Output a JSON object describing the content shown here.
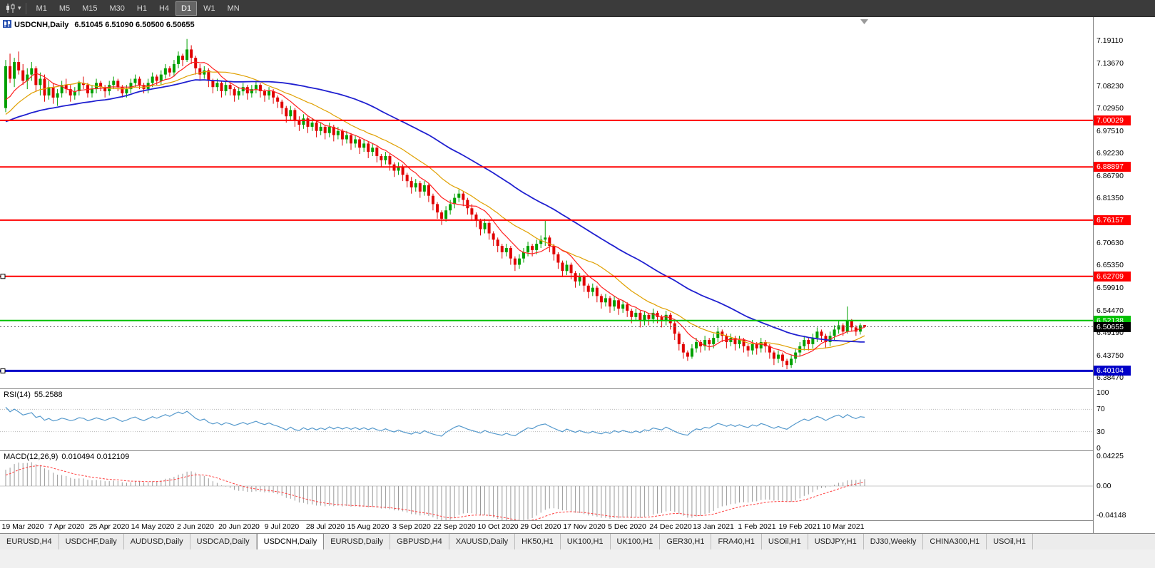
{
  "toolbar": {
    "timeframes": [
      "M1",
      "M5",
      "M15",
      "M30",
      "H1",
      "H4",
      "D1",
      "W1",
      "MN"
    ],
    "active_timeframe": "D1"
  },
  "chart": {
    "title": "USDCNH,Daily",
    "ohlc_text": "6.51045 6.51090 6.50500 6.50655"
  },
  "rsi": {
    "label": "RSI(14)",
    "value": "55.2588"
  },
  "macd": {
    "label": "MACD(12,26,9)",
    "values": "0.010494 0.012109"
  },
  "axis": {
    "price_labels": [
      "7.19110",
      "7.13670",
      "7.08230",
      "7.02950",
      "6.97510",
      "6.92230",
      "6.86790",
      "6.81350",
      "6.75910",
      "6.70630",
      "6.65350",
      "6.59910",
      "6.54470",
      "6.49190",
      "6.43750",
      "6.38470"
    ],
    "rsi_labels": [
      "100",
      "70",
      "30",
      "0"
    ],
    "macd_labels": [
      "0.04225",
      "0.00",
      "-0.04148"
    ]
  },
  "levels": [
    {
      "price": "7.00029",
      "color": "#FF0000",
      "width": 2
    },
    {
      "price": "6.88897",
      "color": "#FF0000",
      "width": 2
    },
    {
      "price": "6.76157",
      "color": "#FF0000",
      "width": 2
    },
    {
      "price": "6.62709",
      "color": "#FF0000",
      "width": 2,
      "handles": true
    },
    {
      "price": "6.52138",
      "color": "#00C000",
      "width": 2
    },
    {
      "price": "6.40104",
      "color": "#0000C8",
      "width": 3,
      "handles": true
    }
  ],
  "current_price": "6.50655",
  "colors": {
    "candle_up": "#00A000",
    "candle_down": "#E00000",
    "ma_fast": "#FF2020",
    "ma_mid": "#E0A000",
    "ma_slow": "#2020D0",
    "rsi_line": "#5599CC",
    "rsi_level": "#BBBBBB",
    "macd_bar": "#999999",
    "macd_signal": "#FF4040",
    "level_red": "#FF0000",
    "level_green": "#00C000",
    "level_blue": "#0000C8",
    "current_badge": "#000000"
  },
  "chart_data": {
    "type": "candlestick",
    "symbol": "USDCNH",
    "timeframe": "Daily",
    "title": "USDCNH,Daily 6.51045 6.51090 6.50500 6.50655",
    "y_axis_range": [
      6.3591,
      7.2474
    ],
    "rsi_range": [
      0,
      100
    ],
    "macd_range": [
      -0.04148,
      0.04225
    ],
    "x_labels": [
      {
        "index": 4,
        "label": "19 Mar 2020"
      },
      {
        "index": 14,
        "label": "7 Apr 2020"
      },
      {
        "index": 24,
        "label": "25 Apr 2020"
      },
      {
        "index": 34,
        "label": "14 May 2020"
      },
      {
        "index": 44,
        "label": "2 Jun 2020"
      },
      {
        "index": 54,
        "label": "20 Jun 2020"
      },
      {
        "index": 64,
        "label": "9 Jul 2020"
      },
      {
        "index": 74,
        "label": "28 Jul 2020"
      },
      {
        "index": 84,
        "label": "15 Aug 2020"
      },
      {
        "index": 94,
        "label": "3 Sep 2020"
      },
      {
        "index": 104,
        "label": "22 Sep 2020"
      },
      {
        "index": 114,
        "label": "10 Oct 2020"
      },
      {
        "index": 124,
        "label": "29 Oct 2020"
      },
      {
        "index": 134,
        "label": "17 Nov 2020"
      },
      {
        "index": 144,
        "label": "5 Dec 2020"
      },
      {
        "index": 154,
        "label": "24 Dec 2020"
      },
      {
        "index": 164,
        "label": "13 Jan 2021"
      },
      {
        "index": 174,
        "label": "1 Feb 2021"
      },
      {
        "index": 184,
        "label": "19 Feb 2021"
      },
      {
        "index": 194,
        "label": "10 Mar 2021"
      }
    ],
    "ma_warmup_closes": [
      6.93,
      6.935,
      6.928,
      6.94,
      6.945,
      6.938,
      6.95,
      6.955,
      6.948,
      6.96,
      6.965,
      6.958,
      6.97,
      6.975,
      6.968,
      6.98,
      6.985,
      6.978,
      6.99,
      6.995,
      6.988,
      7.0,
      7.005,
      6.998,
      7.01,
      7.015,
      7.008,
      7.02,
      7.025,
      7.018,
      7.0,
      6.99,
      6.975,
      6.96,
      6.95,
      6.94,
      6.955,
      6.975,
      6.995,
      7.01,
      7.02,
      7.035,
      7.025,
      7.04,
      7.03,
      7.045,
      7.035,
      7.05,
      7.04,
      7.03
    ],
    "candles": [
      [
        7.03,
        7.145,
        7.02,
        7.13
      ],
      [
        7.13,
        7.16,
        7.09,
        7.1
      ],
      [
        7.1,
        7.15,
        7.08,
        7.14
      ],
      [
        7.14,
        7.165,
        7.11,
        7.12
      ],
      [
        7.12,
        7.135,
        7.085,
        7.095
      ],
      [
        7.095,
        7.125,
        7.075,
        7.11
      ],
      [
        7.11,
        7.14,
        7.095,
        7.125
      ],
      [
        7.125,
        7.13,
        7.07,
        7.085
      ],
      [
        7.085,
        7.115,
        7.06,
        7.1
      ],
      [
        7.1,
        7.11,
        7.045,
        7.06
      ],
      [
        7.06,
        7.095,
        7.05,
        7.08
      ],
      [
        7.08,
        7.09,
        7.04,
        7.055
      ],
      [
        7.055,
        7.075,
        7.035,
        7.065
      ],
      [
        7.065,
        7.095,
        7.055,
        7.085
      ],
      [
        7.085,
        7.1,
        7.065,
        7.075
      ],
      [
        7.075,
        7.085,
        7.045,
        7.06
      ],
      [
        7.06,
        7.08,
        7.05,
        7.07
      ],
      [
        7.07,
        7.095,
        7.06,
        7.09
      ],
      [
        7.09,
        7.105,
        7.075,
        7.085
      ],
      [
        7.085,
        7.09,
        7.055,
        7.065
      ],
      [
        7.065,
        7.085,
        7.055,
        7.075
      ],
      [
        7.075,
        7.1,
        7.065,
        7.09
      ],
      [
        7.09,
        7.095,
        7.07,
        7.08
      ],
      [
        7.08,
        7.085,
        7.055,
        7.07
      ],
      [
        7.07,
        7.095,
        7.06,
        7.085
      ],
      [
        7.085,
        7.105,
        7.075,
        7.095
      ],
      [
        7.095,
        7.1,
        7.07,
        7.08
      ],
      [
        7.08,
        7.085,
        7.055,
        7.065
      ],
      [
        7.065,
        7.085,
        7.055,
        7.075
      ],
      [
        7.075,
        7.1,
        7.065,
        7.09
      ],
      [
        7.09,
        7.11,
        7.08,
        7.1
      ],
      [
        7.1,
        7.105,
        7.075,
        7.085
      ],
      [
        7.085,
        7.09,
        7.065,
        7.075
      ],
      [
        7.075,
        7.1,
        7.065,
        7.09
      ],
      [
        7.09,
        7.115,
        7.08,
        7.105
      ],
      [
        7.105,
        7.11,
        7.085,
        7.095
      ],
      [
        7.095,
        7.12,
        7.085,
        7.11
      ],
      [
        7.11,
        7.135,
        7.1,
        7.125
      ],
      [
        7.125,
        7.13,
        7.105,
        7.115
      ],
      [
        7.115,
        7.145,
        7.105,
        7.135
      ],
      [
        7.135,
        7.165,
        7.125,
        7.155
      ],
      [
        7.155,
        7.16,
        7.13,
        7.145
      ],
      [
        7.145,
        7.195,
        7.14,
        7.17
      ],
      [
        7.17,
        7.18,
        7.135,
        7.15
      ],
      [
        7.15,
        7.155,
        7.11,
        7.125
      ],
      [
        7.125,
        7.135,
        7.095,
        7.11
      ],
      [
        7.11,
        7.13,
        7.1,
        7.12
      ],
      [
        7.12,
        7.125,
        7.08,
        7.095
      ],
      [
        7.095,
        7.1,
        7.065,
        7.08
      ],
      [
        7.08,
        7.1,
        7.07,
        7.09
      ],
      [
        7.09,
        7.095,
        7.055,
        7.07
      ],
      [
        7.07,
        7.095,
        7.06,
        7.085
      ],
      [
        7.085,
        7.09,
        7.06,
        7.075
      ],
      [
        7.075,
        7.08,
        7.045,
        7.06
      ],
      [
        7.06,
        7.08,
        7.05,
        7.07
      ],
      [
        7.07,
        7.09,
        7.06,
        7.08
      ],
      [
        7.08,
        7.085,
        7.05,
        7.065
      ],
      [
        7.065,
        7.085,
        7.055,
        7.075
      ],
      [
        7.075,
        7.095,
        7.065,
        7.085
      ],
      [
        7.085,
        7.09,
        7.055,
        7.07
      ],
      [
        7.07,
        7.075,
        7.045,
        7.06
      ],
      [
        7.06,
        7.08,
        7.05,
        7.07
      ],
      [
        7.07,
        7.075,
        7.04,
        7.055
      ],
      [
        7.055,
        7.06,
        7.03,
        7.045
      ],
      [
        7.045,
        7.05,
        7.015,
        7.03
      ],
      [
        7.03,
        7.035,
        6.995,
        7.01
      ],
      [
        7.01,
        7.035,
        7.0,
        7.025
      ],
      [
        7.025,
        7.03,
        6.985,
        7.0
      ],
      [
        7.0,
        7.01,
        6.975,
        6.99
      ],
      [
        6.99,
        7.015,
        6.98,
        7.005
      ],
      [
        7.005,
        7.01,
        6.97,
        6.985
      ],
      [
        6.985,
        7.005,
        6.975,
        6.995
      ],
      [
        6.995,
        7.0,
        6.96,
        6.975
      ],
      [
        6.975,
        6.995,
        6.965,
        6.985
      ],
      [
        6.985,
        6.99,
        6.955,
        6.97
      ],
      [
        6.97,
        6.995,
        6.96,
        6.985
      ],
      [
        6.985,
        6.99,
        6.95,
        6.965
      ],
      [
        6.965,
        6.985,
        6.955,
        6.975
      ],
      [
        6.975,
        6.98,
        6.94,
        6.955
      ],
      [
        6.955,
        6.975,
        6.945,
        6.965
      ],
      [
        6.965,
        6.97,
        6.93,
        6.945
      ],
      [
        6.945,
        6.965,
        6.935,
        6.955
      ],
      [
        6.955,
        6.96,
        6.92,
        6.935
      ],
      [
        6.935,
        6.955,
        6.925,
        6.945
      ],
      [
        6.945,
        6.95,
        6.91,
        6.925
      ],
      [
        6.925,
        6.945,
        6.915,
        6.935
      ],
      [
        6.935,
        6.94,
        6.9,
        6.915
      ],
      [
        6.915,
        6.92,
        6.89,
        6.905
      ],
      [
        6.905,
        6.925,
        6.895,
        6.915
      ],
      [
        6.915,
        6.92,
        6.88,
        6.895
      ],
      [
        6.895,
        6.9,
        6.865,
        6.88
      ],
      [
        6.88,
        6.9,
        6.87,
        6.89
      ],
      [
        6.89,
        6.895,
        6.855,
        6.87
      ],
      [
        6.87,
        6.875,
        6.84,
        6.855
      ],
      [
        6.855,
        6.865,
        6.825,
        6.84
      ],
      [
        6.84,
        6.86,
        6.83,
        6.85
      ],
      [
        6.85,
        6.855,
        6.815,
        6.83
      ],
      [
        6.83,
        6.855,
        6.82,
        6.845
      ],
      [
        6.845,
        6.85,
        6.805,
        6.82
      ],
      [
        6.82,
        6.825,
        6.785,
        6.8
      ],
      [
        6.8,
        6.805,
        6.765,
        6.78
      ],
      [
        6.78,
        6.785,
        6.75,
        6.765
      ],
      [
        6.765,
        6.795,
        6.758,
        6.785
      ],
      [
        6.785,
        6.81,
        6.775,
        6.8
      ],
      [
        6.8,
        6.825,
        6.79,
        6.815
      ],
      [
        6.815,
        6.835,
        6.805,
        6.825
      ],
      [
        6.825,
        6.83,
        6.795,
        6.81
      ],
      [
        6.81,
        6.815,
        6.775,
        6.79
      ],
      [
        6.79,
        6.8,
        6.76,
        6.775
      ],
      [
        6.775,
        6.78,
        6.745,
        6.76
      ],
      [
        6.76,
        6.765,
        6.725,
        6.74
      ],
      [
        6.74,
        6.765,
        6.73,
        6.755
      ],
      [
        6.755,
        6.76,
        6.715,
        6.73
      ],
      [
        6.73,
        6.735,
        6.7,
        6.715
      ],
      [
        6.715,
        6.72,
        6.685,
        6.7
      ],
      [
        6.7,
        6.705,
        6.67,
        6.685
      ],
      [
        6.685,
        6.705,
        6.675,
        6.695
      ],
      [
        6.695,
        6.7,
        6.655,
        6.67
      ],
      [
        6.67,
        6.675,
        6.64,
        6.655
      ],
      [
        6.655,
        6.68,
        6.645,
        6.67
      ],
      [
        6.67,
        6.695,
        6.66,
        6.685
      ],
      [
        6.685,
        6.71,
        6.675,
        6.7
      ],
      [
        6.7,
        6.705,
        6.675,
        6.69
      ],
      [
        6.69,
        6.715,
        6.68,
        6.705
      ],
      [
        6.705,
        6.725,
        6.695,
        6.715
      ],
      [
        6.715,
        6.76,
        6.7,
        6.72
      ],
      [
        6.72,
        6.725,
        6.685,
        6.7
      ],
      [
        6.7,
        6.705,
        6.665,
        6.68
      ],
      [
        6.68,
        6.685,
        6.645,
        6.66
      ],
      [
        6.66,
        6.665,
        6.625,
        6.64
      ],
      [
        6.64,
        6.665,
        6.63,
        6.655
      ],
      [
        6.655,
        6.66,
        6.62,
        6.635
      ],
      [
        6.635,
        6.64,
        6.6,
        6.615
      ],
      [
        6.615,
        6.635,
        6.605,
        6.625
      ],
      [
        6.625,
        6.63,
        6.59,
        6.605
      ],
      [
        6.605,
        6.61,
        6.575,
        6.59
      ],
      [
        6.59,
        6.61,
        6.58,
        6.6
      ],
      [
        6.6,
        6.605,
        6.565,
        6.58
      ],
      [
        6.58,
        6.585,
        6.55,
        6.565
      ],
      [
        6.565,
        6.585,
        6.555,
        6.575
      ],
      [
        6.575,
        6.58,
        6.54,
        6.555
      ],
      [
        6.555,
        6.58,
        6.545,
        6.57
      ],
      [
        6.57,
        6.575,
        6.535,
        6.55
      ],
      [
        6.55,
        6.57,
        6.54,
        6.56
      ],
      [
        6.56,
        6.565,
        6.53,
        6.545
      ],
      [
        6.545,
        6.55,
        6.515,
        6.53
      ],
      [
        6.53,
        6.55,
        6.52,
        6.54
      ],
      [
        6.54,
        6.545,
        6.505,
        6.52
      ],
      [
        6.52,
        6.545,
        6.51,
        6.535
      ],
      [
        6.535,
        6.54,
        6.51,
        6.525
      ],
      [
        6.525,
        6.55,
        6.515,
        6.54
      ],
      [
        6.54,
        6.545,
        6.515,
        6.53
      ],
      [
        6.53,
        6.535,
        6.505,
        6.52
      ],
      [
        6.52,
        6.545,
        6.51,
        6.535
      ],
      [
        6.535,
        6.54,
        6.5,
        6.515
      ],
      [
        6.515,
        6.52,
        6.475,
        6.49
      ],
      [
        6.49,
        6.495,
        6.45,
        6.465
      ],
      [
        6.465,
        6.47,
        6.43,
        6.445
      ],
      [
        6.445,
        6.45,
        6.425,
        6.435
      ],
      [
        6.435,
        6.465,
        6.43,
        6.455
      ],
      [
        6.455,
        6.48,
        6.445,
        6.47
      ],
      [
        6.47,
        6.475,
        6.445,
        6.46
      ],
      [
        6.46,
        6.485,
        6.45,
        6.475
      ],
      [
        6.475,
        6.48,
        6.45,
        6.465
      ],
      [
        6.465,
        6.49,
        6.455,
        6.48
      ],
      [
        6.48,
        6.505,
        6.47,
        6.495
      ],
      [
        6.495,
        6.5,
        6.47,
        6.485
      ],
      [
        6.485,
        6.49,
        6.455,
        6.47
      ],
      [
        6.47,
        6.49,
        6.46,
        6.48
      ],
      [
        6.48,
        6.485,
        6.45,
        6.465
      ],
      [
        6.465,
        6.485,
        6.455,
        6.475
      ],
      [
        6.475,
        6.48,
        6.445,
        6.46
      ],
      [
        6.46,
        6.465,
        6.435,
        6.45
      ],
      [
        6.45,
        6.475,
        6.44,
        6.465
      ],
      [
        6.465,
        6.47,
        6.44,
        6.455
      ],
      [
        6.455,
        6.48,
        6.445,
        6.47
      ],
      [
        6.47,
        6.475,
        6.445,
        6.46
      ],
      [
        6.46,
        6.465,
        6.43,
        6.445
      ],
      [
        6.445,
        6.45,
        6.415,
        6.43
      ],
      [
        6.43,
        6.45,
        6.42,
        6.44
      ],
      [
        6.44,
        6.445,
        6.41,
        6.425
      ],
      [
        6.425,
        6.43,
        6.405,
        6.415
      ],
      [
        6.415,
        6.44,
        6.408,
        6.43
      ],
      [
        6.43,
        6.455,
        6.42,
        6.445
      ],
      [
        6.445,
        6.47,
        6.435,
        6.46
      ],
      [
        6.46,
        6.485,
        6.45,
        6.475
      ],
      [
        6.475,
        6.48,
        6.45,
        6.465
      ],
      [
        6.465,
        6.49,
        6.455,
        6.48
      ],
      [
        6.48,
        6.505,
        6.47,
        6.495
      ],
      [
        6.495,
        6.5,
        6.47,
        6.485
      ],
      [
        6.485,
        6.49,
        6.455,
        6.47
      ],
      [
        6.47,
        6.495,
        6.46,
        6.485
      ],
      [
        6.485,
        6.51,
        6.475,
        6.5
      ],
      [
        6.5,
        6.52,
        6.49,
        6.51
      ],
      [
        6.51,
        6.515,
        6.485,
        6.495
      ],
      [
        6.495,
        6.555,
        6.49,
        6.52
      ],
      [
        6.52,
        6.525,
        6.495,
        6.505
      ],
      [
        6.505,
        6.51,
        6.485,
        6.495
      ],
      [
        6.495,
        6.515,
        6.488,
        6.51
      ],
      [
        6.51045,
        6.5109,
        6.505,
        6.50655
      ]
    ]
  },
  "tabs": [
    {
      "label": "EURUSD,H4"
    },
    {
      "label": "USDCHF,Daily"
    },
    {
      "label": "AUDUSD,Daily"
    },
    {
      "label": "USDCAD,Daily"
    },
    {
      "label": "USDCNH,Daily",
      "active": true
    },
    {
      "label": "EURUSD,Daily"
    },
    {
      "label": "GBPUSD,H4"
    },
    {
      "label": "XAUUSD,Daily"
    },
    {
      "label": "HK50,H1"
    },
    {
      "label": "UK100,H1"
    },
    {
      "label": "UK100,H1"
    },
    {
      "label": "GER30,H1"
    },
    {
      "label": "FRA40,H1"
    },
    {
      "label": "USOil,H1"
    },
    {
      "label": "USDJPY,H1"
    },
    {
      "label": "DJ30,Weekly"
    },
    {
      "label": "CHINA300,H1"
    },
    {
      "label": "USOil,H1"
    }
  ]
}
